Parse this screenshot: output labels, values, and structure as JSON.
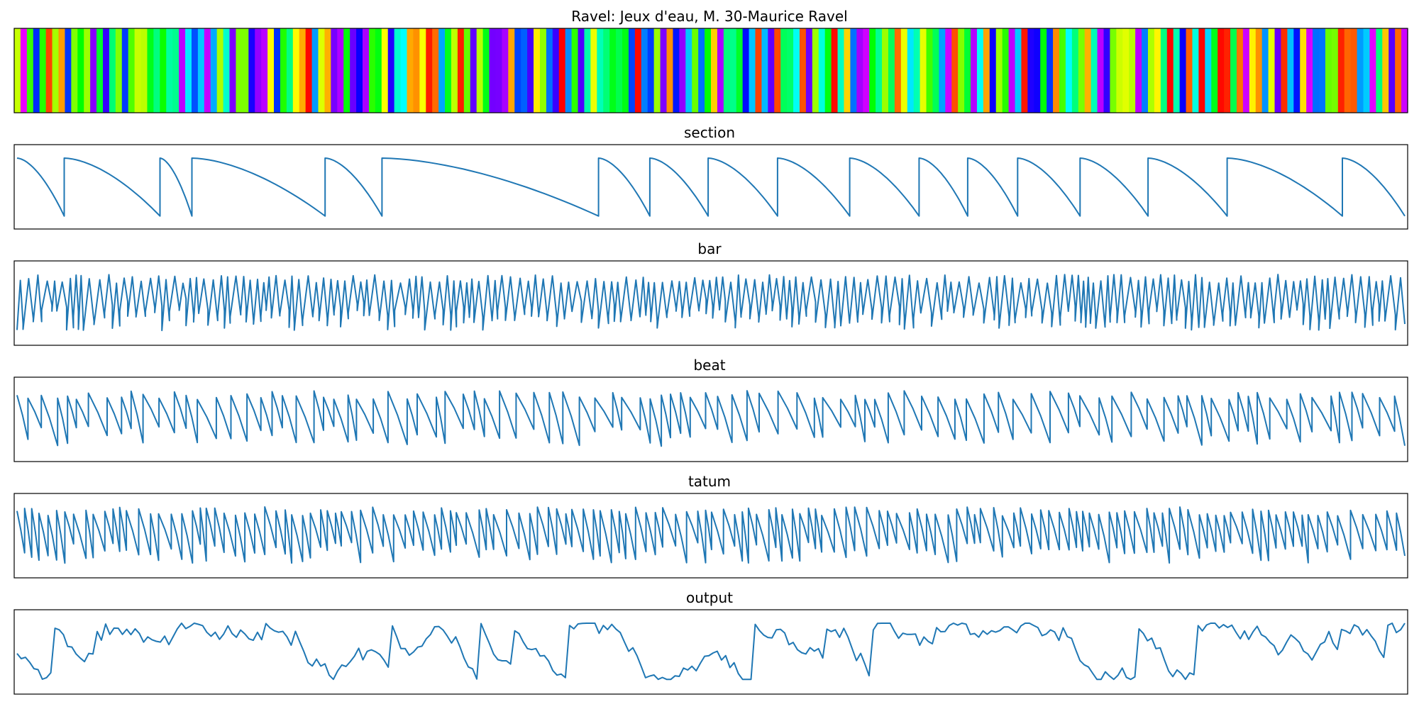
{
  "chart_data": [
    {
      "type": "heatmap",
      "title": "Ravel: Jeux d'eau, M. 30-Maurice Ravel",
      "colormap": "hsv",
      "segments": 220,
      "note_seed": 30
    },
    {
      "type": "line",
      "title": "section",
      "ylim": [
        0,
        1
      ],
      "boundaries": [
        0,
        0.034,
        0.103,
        0.126,
        0.222,
        0.263,
        0.419,
        0.456,
        0.498,
        0.548,
        0.6,
        0.65,
        0.685,
        0.721,
        0.766,
        0.815,
        0.872,
        0.955,
        1.0
      ]
    },
    {
      "type": "line",
      "title": "bar",
      "ylim": [
        0,
        1
      ],
      "segment_count": 180
    },
    {
      "type": "line",
      "title": "beat",
      "ylim": [
        0,
        1
      ],
      "segment_count": 100
    },
    {
      "type": "line",
      "title": "tatum",
      "ylim": [
        0,
        1
      ],
      "segment_count": 150
    },
    {
      "type": "line",
      "title": "output",
      "ylim": [
        0,
        1
      ],
      "point_count": 330
    }
  ],
  "colors": {
    "line": "#1f77b4",
    "frame": "#000000",
    "background": "#ffffff"
  }
}
